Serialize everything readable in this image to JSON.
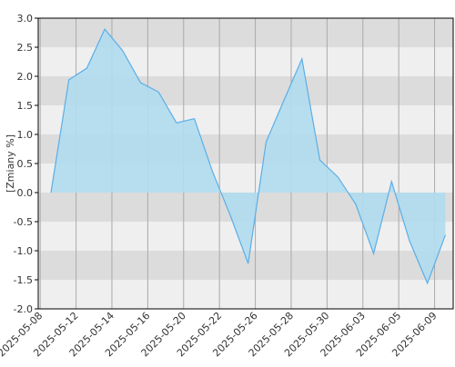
{
  "chart_data": {
    "type": "area",
    "y_label": "[Zmiany %]",
    "categories": [
      "2025-05-08",
      null,
      "2025-05-12",
      null,
      "2025-05-14",
      null,
      "2025-05-16",
      null,
      "2025-05-20",
      null,
      "2025-05-22",
      null,
      "2025-05-26",
      null,
      "2025-05-28",
      null,
      "2025-05-30",
      null,
      "2025-06-03",
      null,
      "2025-06-05",
      null,
      "2025-06-09"
    ],
    "values": [
      0,
      1.94,
      2.14,
      2.81,
      2.44,
      1.89,
      1.73,
      1.2,
      1.27,
      0.37,
      -0.39,
      -1.22,
      0.87,
      1.59,
      2.3,
      0.56,
      0.27,
      -0.2,
      -1.05,
      0.19,
      -0.83,
      -1.56,
      -0.73
    ],
    "color": "#5aaee8",
    "fill": "#b0dcee",
    "ylim": [
      -2.0,
      3.0
    ],
    "yticks": [
      {
        "value": -2.0,
        "label": "-2.0"
      },
      {
        "value": -1.5,
        "label": "-1.5"
      },
      {
        "value": -1.0,
        "label": "-1.0"
      },
      {
        "value": -0.5,
        "label": "-0.5"
      },
      {
        "value": 0,
        "label": "0.0"
      },
      {
        "value": 0.5,
        "label": "0.5"
      },
      {
        "value": 1.0,
        "label": "1.0"
      },
      {
        "value": 1.5,
        "label": "1.5"
      },
      {
        "value": 2.0,
        "label": "2.0"
      },
      {
        "value": 2.5,
        "label": "2.5"
      },
      {
        "value": 3.0,
        "label": "3.0"
      }
    ],
    "grid": true
  }
}
